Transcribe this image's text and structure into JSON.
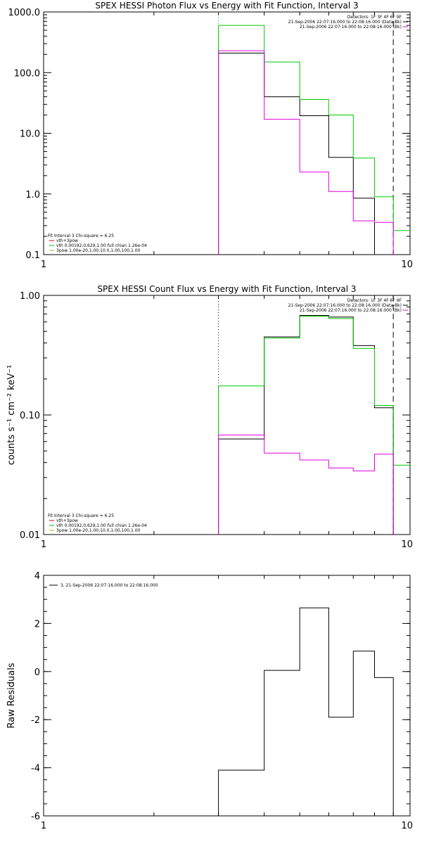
{
  "chart_data": [
    {
      "type": "line",
      "title": "SPEX HESSI Photon Flux vs Energy with Fit Function, Interval 3",
      "xlabel": "",
      "ylabel": "",
      "xscale": "log",
      "yscale": "log",
      "xlim": [
        1,
        10
      ],
      "ylim": [
        0.1,
        1000
      ],
      "x_ticks": [
        {
          "v": 1,
          "label": "1"
        },
        {
          "v": 10,
          "label": "10"
        }
      ],
      "y_ticks": [
        {
          "v": 0.1,
          "label": "0.1"
        },
        {
          "v": 1,
          "label": "1.0"
        },
        {
          "v": 10,
          "label": "10.0"
        },
        {
          "v": 100,
          "label": "100.0"
        },
        {
          "v": 1000,
          "label": "1000.0"
        }
      ],
      "bin_edges": [
        3,
        4,
        5,
        6,
        7,
        8,
        9,
        10
      ],
      "series": [
        {
          "color": "#000000",
          "values": [
            210,
            40,
            19.5,
            4.0,
            0.85,
            null,
            null
          ],
          "bin_offset": 1,
          "first": 210,
          "step_values": [
            210,
            210,
            40,
            19.5,
            4.0,
            0.85
          ]
        },
        {
          "color": "#00c800",
          "values": [
            600,
            150,
            36,
            20,
            3.9,
            0.9,
            0.25
          ]
        },
        {
          "color": "#e000e0",
          "values": [
            230,
            17,
            2.3,
            1.1,
            0.36,
            0.34,
            null
          ]
        }
      ],
      "vlines": [
        {
          "x": 3,
          "style": "dotted",
          "color": "#00c800"
        },
        {
          "x": 9,
          "style": "dashed",
          "color": "#000000"
        }
      ],
      "info_text": [
        "Detectors: 1F 3F 4F 6F 9F",
        "21-Sep-2006 22:07:16.000 to 22:08:16.000 (Data-Bk)",
        "21-Sep-2006 22:07:16.000 to 22:08:16.000 (Bk)"
      ],
      "legend": [
        "Fit Interval 3   Chi-square = 6.25",
        "vth+3pow",
        "vth 0.00192,0.629,1.00   full chian 1.26e-04",
        "3pow 1.00e-20,1.00,10.0,1.00,100,1.00"
      ]
    },
    {
      "type": "line",
      "title": "SPEX HESSI Count Flux vs Energy with Fit Function, Interval 3",
      "xlabel": "",
      "ylabel": "counts s⁻¹ cm⁻² keV⁻¹",
      "xscale": "log",
      "yscale": "log",
      "xlim": [
        1,
        10
      ],
      "ylim": [
        0.01,
        1.0
      ],
      "x_ticks": [
        {
          "v": 1,
          "label": "1"
        },
        {
          "v": 10,
          "label": "10"
        }
      ],
      "y_ticks": [
        {
          "v": 0.01,
          "label": "0.01"
        },
        {
          "v": 0.1,
          "label": "0.10"
        },
        {
          "v": 1,
          "label": "1.00"
        }
      ],
      "bin_edges": [
        3,
        4,
        5,
        6,
        7,
        8,
        9,
        10
      ],
      "series": [
        {
          "color": "#000000",
          "values": [
            0.063,
            0.45,
            0.68,
            0.66,
            0.38,
            0.115,
            null
          ]
        },
        {
          "color": "#00c800",
          "values": [
            0.175,
            0.44,
            0.67,
            0.64,
            0.36,
            0.12,
            0.038
          ]
        },
        {
          "color": "#e000e0",
          "values": [
            0.068,
            0.048,
            0.042,
            0.036,
            0.034,
            0.047,
            null
          ]
        }
      ],
      "vlines": [
        {
          "x": 3,
          "style": "dotted",
          "color": "#000000"
        },
        {
          "x": 9,
          "style": "dashed",
          "color": "#000000"
        }
      ],
      "info_text": [
        "Detectors: 1F 3F 4F 6F 9F",
        "21-Sep-2006 22:07:16.000 to 22:08:16.000 (Data-Bk)",
        "21-Sep-2006 22:07:16.000 to 22:08:16.000 (Bk)"
      ],
      "legend": [
        "Fit Interval 3   Chi-square = 6.25",
        "vth+3pow",
        "vth 0.00192,0.629,1.00   full chian 1.26e-04",
        "3pow 1.00e-20,1.00,10.0,1.00,100,1.00"
      ]
    },
    {
      "type": "line",
      "title": "",
      "xlabel": "",
      "ylabel": "Raw Residuals",
      "xscale": "log",
      "yscale": "linear",
      "xlim": [
        1,
        10
      ],
      "ylim": [
        -6,
        4
      ],
      "x_ticks": [
        {
          "v": 1,
          "label": "1"
        },
        {
          "v": 10,
          "label": "10"
        }
      ],
      "y_ticks": [
        {
          "v": -6,
          "label": "-6"
        },
        {
          "v": -4,
          "label": "-4"
        },
        {
          "v": -2,
          "label": "-2"
        },
        {
          "v": 0,
          "label": "0"
        },
        {
          "v": 2,
          "label": "2"
        },
        {
          "v": 4,
          "label": "4"
        }
      ],
      "bin_edges": [
        3,
        4,
        5,
        6,
        7,
        8,
        9
      ],
      "series": [
        {
          "color": "#000000",
          "values": [
            -4.1,
            0.05,
            2.65,
            -1.9,
            0.85,
            -0.25
          ]
        }
      ],
      "legend": [
        "3, 21-Sep-2006 22:07:16.000 to 22:08:16.000"
      ]
    }
  ]
}
